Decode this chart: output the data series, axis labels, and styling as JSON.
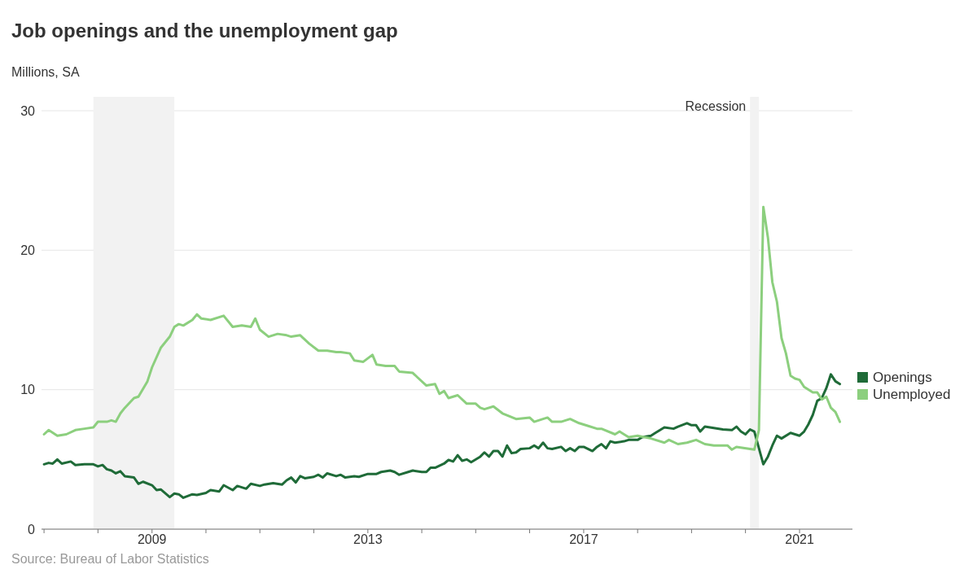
{
  "chart_data": {
    "type": "line",
    "title": "Job openings and the unemployment gap",
    "ylabel": "Millions, SA",
    "annotations": [
      "Source: Bureau of Labor Statistics"
    ],
    "xlim": [
      "2006-12-15",
      "2021-12-25"
    ],
    "xticks": [
      {
        "value": "2007",
        "label": null
      },
      {
        "value": "2008",
        "label": null
      },
      "2009",
      {
        "value": "2010",
        "label": null
      },
      {
        "value": "2011",
        "label": null
      },
      {
        "value": "2012",
        "label": null
      },
      "2013",
      {
        "value": "2014",
        "label": null
      },
      {
        "value": "2015",
        "label": null
      },
      {
        "value": "2016",
        "label": null
      },
      "2017",
      {
        "value": "2018",
        "label": null
      },
      {
        "value": "2019",
        "label": null
      },
      {
        "value": "2020",
        "label": null
      },
      "2021"
    ],
    "ylim": [
      0,
      30
    ],
    "yticks": [
      0,
      10,
      20,
      30
    ],
    "grid": "y",
    "legend": "right",
    "bands": [
      {
        "axis": "x",
        "from": "2007-12",
        "to": "2009-06",
        "label": null,
        "color": "#f2f2f2"
      },
      {
        "axis": "x",
        "from": "2020-02",
        "to": "2020-04",
        "label": "Recession",
        "color": "#f2f2f2"
      }
    ],
    "series": [
      {
        "name": "Openings",
        "color": "#1f6b38",
        "x": [
          "2007-01",
          "2007-02",
          "2007-03",
          "2007-04",
          "2007-05",
          "2007-07",
          "2007-08",
          "2007-10",
          "2007-12",
          "2008-01",
          "2008-02",
          "2008-03",
          "2008-04",
          "2008-05",
          "2008-06",
          "2008-07",
          "2008-09",
          "2008-10",
          "2008-11",
          "2009-01",
          "2009-02",
          "2009-03",
          "2009-05",
          "2009-06",
          "2009-07",
          "2009-08",
          "2009-10",
          "2009-11",
          "2010-01",
          "2010-02",
          "2010-04",
          "2010-05",
          "2010-07",
          "2010-08",
          "2010-10",
          "2010-11",
          "2011-01",
          "2011-02",
          "2011-04",
          "2011-06",
          "2011-07",
          "2011-08",
          "2011-09",
          "2011-10",
          "2011-11",
          "2012-01",
          "2012-02",
          "2012-03",
          "2012-04",
          "2012-06",
          "2012-07",
          "2012-08",
          "2012-10",
          "2012-11",
          "2013-01",
          "2013-03",
          "2013-04",
          "2013-06",
          "2013-07",
          "2013-08",
          "2013-10",
          "2013-11",
          "2014-01",
          "2014-02",
          "2014-03",
          "2014-04",
          "2014-06",
          "2014-07",
          "2014-08",
          "2014-09",
          "2014-10",
          "2014-11",
          "2014-12",
          "2015-02",
          "2015-03",
          "2015-04",
          "2015-05",
          "2015-06",
          "2015-07",
          "2015-08",
          "2015-09",
          "2015-10",
          "2015-11",
          "2016-01",
          "2016-02",
          "2016-03",
          "2016-04",
          "2016-05",
          "2016-06",
          "2016-08",
          "2016-09",
          "2016-10",
          "2016-11",
          "2016-12",
          "2017-01",
          "2017-03",
          "2017-04",
          "2017-05",
          "2017-06",
          "2017-07",
          "2017-08",
          "2017-10",
          "2017-11",
          "2018-01",
          "2018-02",
          "2018-04",
          "2018-05",
          "2018-07",
          "2018-09",
          "2018-10",
          "2018-12",
          "2019-01",
          "2019-02",
          "2019-03",
          "2019-04",
          "2019-06",
          "2019-08",
          "2019-10",
          "2019-11",
          "2019-12",
          "2020-01",
          "2020-02",
          "2020-03",
          "2020-05",
          "2020-06",
          "2020-07",
          "2020-08",
          "2020-09",
          "2020-11",
          "2021-01",
          "2021-02",
          "2021-03",
          "2021-04",
          "2021-05",
          "2021-06",
          "2021-07",
          "2021-08",
          "2021-09",
          "2021-10"
        ],
        "values": [
          4.65,
          4.75,
          4.7,
          5.0,
          4.7,
          4.85,
          4.6,
          4.65,
          4.65,
          4.5,
          4.6,
          4.3,
          4.2,
          4.0,
          4.15,
          3.8,
          3.7,
          3.25,
          3.4,
          3.15,
          2.8,
          2.85,
          2.3,
          2.55,
          2.5,
          2.25,
          2.5,
          2.45,
          2.6,
          2.8,
          2.7,
          3.15,
          2.8,
          3.1,
          2.9,
          3.25,
          3.1,
          3.2,
          3.3,
          3.2,
          3.5,
          3.7,
          3.35,
          3.8,
          3.65,
          3.75,
          3.9,
          3.7,
          4.0,
          3.8,
          3.9,
          3.7,
          3.8,
          3.75,
          3.96,
          3.96,
          4.1,
          4.2,
          4.1,
          3.9,
          4.1,
          4.2,
          4.1,
          4.1,
          4.4,
          4.4,
          4.7,
          4.96,
          4.85,
          5.3,
          4.9,
          5.0,
          4.8,
          5.2,
          5.5,
          5.2,
          5.6,
          5.6,
          5.2,
          6.0,
          5.45,
          5.5,
          5.75,
          5.8,
          6.0,
          5.8,
          6.2,
          5.8,
          5.75,
          5.9,
          5.6,
          5.8,
          5.6,
          5.9,
          5.9,
          5.6,
          5.9,
          6.1,
          5.8,
          6.3,
          6.2,
          6.3,
          6.4,
          6.4,
          6.6,
          6.7,
          6.9,
          7.3,
          7.2,
          7.35,
          7.6,
          7.45,
          7.45,
          7.0,
          7.35,
          7.25,
          7.15,
          7.1,
          7.35,
          7.0,
          6.8,
          7.15,
          7.0,
          4.65,
          5.2,
          6.0,
          6.7,
          6.5,
          6.9,
          6.7,
          7.0,
          7.5,
          8.2,
          9.2,
          9.4,
          10.1,
          11.1,
          10.6,
          10.4
        ]
      },
      {
        "name": "Unemployed",
        "color": "#8ccf7e",
        "x": [
          "2007-01",
          "2007-02",
          "2007-04",
          "2007-06",
          "2007-08",
          "2007-10",
          "2007-12",
          "2008-01",
          "2008-03",
          "2008-04",
          "2008-05",
          "2008-06",
          "2008-07",
          "2008-09",
          "2008-10",
          "2008-12",
          "2009-01",
          "2009-03",
          "2009-05",
          "2009-06",
          "2009-07",
          "2009-08",
          "2009-10",
          "2009-11",
          "2009-12",
          "2010-02",
          "2010-05",
          "2010-07",
          "2010-09",
          "2010-11",
          "2010-12",
          "2011-01",
          "2011-03",
          "2011-05",
          "2011-07",
          "2011-08",
          "2011-10",
          "2011-12",
          "2012-02",
          "2012-04",
          "2012-06",
          "2012-07",
          "2012-09",
          "2012-10",
          "2012-12",
          "2013-02",
          "2013-03",
          "2013-05",
          "2013-07",
          "2013-08",
          "2013-11",
          "2013-12",
          "2014-02",
          "2014-04",
          "2014-05",
          "2014-06",
          "2014-07",
          "2014-09",
          "2014-11",
          "2015-01",
          "2015-02",
          "2015-03",
          "2015-05",
          "2015-07",
          "2015-10",
          "2016-01",
          "2016-02",
          "2016-05",
          "2016-06",
          "2016-08",
          "2016-10",
          "2016-12",
          "2017-02",
          "2017-04",
          "2017-05",
          "2017-08",
          "2017-09",
          "2017-11",
          "2018-01",
          "2018-04",
          "2018-07",
          "2018-08",
          "2018-10",
          "2018-12",
          "2019-02",
          "2019-04",
          "2019-06",
          "2019-09",
          "2019-10",
          "2019-11",
          "2020-03",
          "2020-04",
          "2020-05",
          "2020-06",
          "2020-07",
          "2020-08",
          "2020-09",
          "2020-10",
          "2020-11",
          "2020-12",
          "2021-01",
          "2021-02",
          "2021-04",
          "2021-05",
          "2021-06",
          "2021-07",
          "2021-08",
          "2021-09",
          "2021-10"
        ],
        "values": [
          6.8,
          7.1,
          6.7,
          6.8,
          7.1,
          7.2,
          7.3,
          7.7,
          7.7,
          7.8,
          7.7,
          8.3,
          8.7,
          9.4,
          9.5,
          10.6,
          11.6,
          13.0,
          13.8,
          14.5,
          14.7,
          14.6,
          15.0,
          15.4,
          15.1,
          15.0,
          15.3,
          14.5,
          14.6,
          14.5,
          15.1,
          14.3,
          13.8,
          14.0,
          13.9,
          13.8,
          13.9,
          13.3,
          12.8,
          12.8,
          12.7,
          12.7,
          12.6,
          12.1,
          12.0,
          12.5,
          11.8,
          11.7,
          11.7,
          11.3,
          11.2,
          10.9,
          10.3,
          10.4,
          9.7,
          9.9,
          9.4,
          9.6,
          9.0,
          9.0,
          8.7,
          8.6,
          8.8,
          8.3,
          7.9,
          8.0,
          7.7,
          8.0,
          7.7,
          7.7,
          7.9,
          7.6,
          7.4,
          7.2,
          7.2,
          6.8,
          7.0,
          6.6,
          6.7,
          6.5,
          6.2,
          6.4,
          6.1,
          6.2,
          6.4,
          6.1,
          6.0,
          6.0,
          5.7,
          5.9,
          5.7,
          7.1,
          23.1,
          20.9,
          17.7,
          16.3,
          13.7,
          12.6,
          11.0,
          10.8,
          10.7,
          10.2,
          9.8,
          9.8,
          9.3,
          9.5,
          8.7,
          8.4,
          7.7
        ]
      }
    ]
  }
}
